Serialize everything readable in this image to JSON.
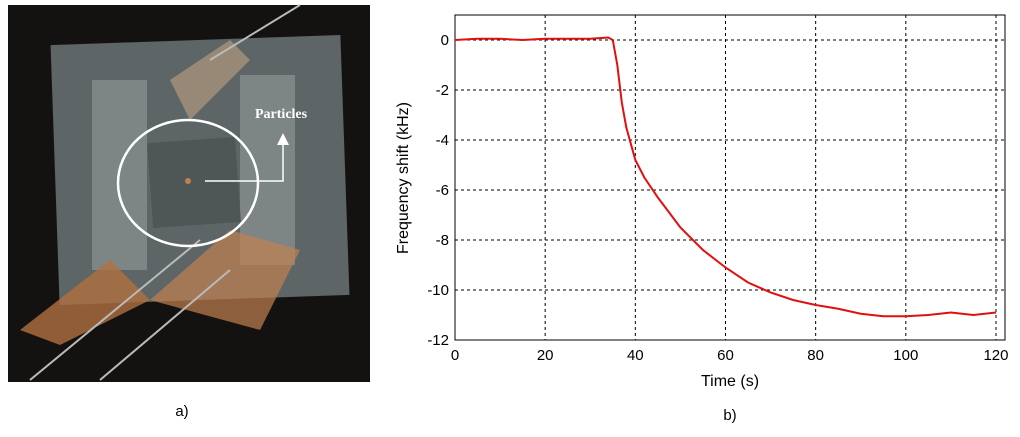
{
  "figure": {
    "photo": {
      "annotation": "Particles",
      "caption": "a)"
    },
    "chart_caption": "b)"
  },
  "chart_data": {
    "type": "line",
    "xlabel": "Time (s)",
    "ylabel": "Frequency shift (kHz)",
    "x": [
      0,
      5,
      10,
      15,
      20,
      25,
      30,
      34,
      35,
      36,
      37,
      38,
      40,
      42,
      45,
      50,
      55,
      60,
      65,
      70,
      75,
      80,
      85,
      90,
      95,
      100,
      105,
      110,
      115,
      120
    ],
    "series": [
      {
        "name": "Frequency shift",
        "color": "#e01010",
        "values": [
          0,
          0.05,
          0.05,
          0,
          0.05,
          0.05,
          0.05,
          0.1,
          0,
          -1,
          -2.5,
          -3.5,
          -4.8,
          -5.5,
          -6.3,
          -7.5,
          -8.4,
          -9.1,
          -9.7,
          -10.1,
          -10.4,
          -10.6,
          -10.75,
          -10.95,
          -11.05,
          -11.05,
          -11,
          -10.9,
          -11,
          -10.9
        ]
      }
    ],
    "xlim": [
      0,
      122
    ],
    "ylim": [
      -12,
      1
    ],
    "xticks": [
      0,
      20,
      40,
      60,
      80,
      100,
      120
    ],
    "yticks": [
      -12,
      -10,
      -8,
      -6,
      -4,
      -2,
      0
    ],
    "grid": true
  }
}
